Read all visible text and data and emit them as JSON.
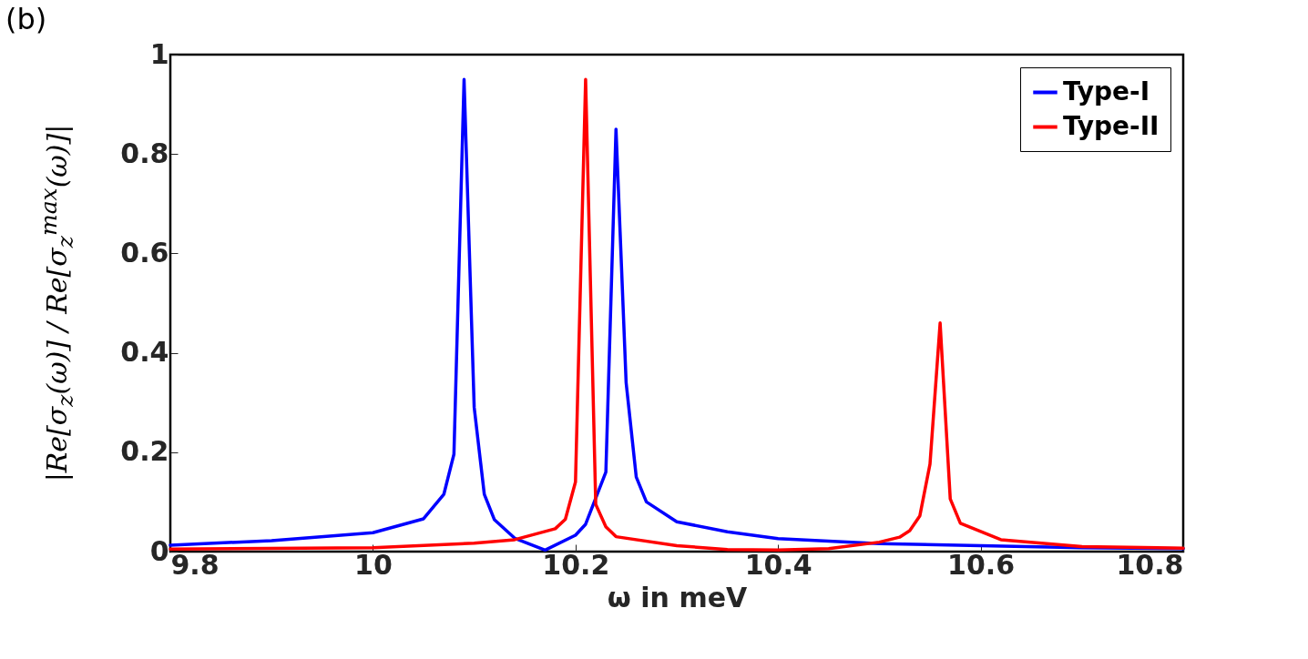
{
  "chart_data": {
    "type": "line",
    "xlabel": "ω in meV",
    "ylabel": "|Re[σ$_{z}$(ω)] / Re[σ$_{z}$$^{max}$(ω)]|",
    "annotations": [
      "(b)"
    ],
    "xlim": [
      9.8,
      10.8
    ],
    "xticks": [
      9.8,
      10,
      10.2,
      10.4,
      10.6,
      10.8
    ],
    "ylim": [
      0,
      1
    ],
    "yticks": [
      0,
      0.2,
      0.4,
      0.6,
      0.8,
      1
    ],
    "grid": false,
    "legend": "top right",
    "marker": "none",
    "line_style": "solid",
    "series": [
      {
        "name": "Type-I",
        "color": "#0000ff",
        "x": [
          9.8,
          9.9,
          10.0,
          10.05,
          10.07,
          10.08,
          10.09,
          10.1,
          10.11,
          10.12,
          10.14,
          10.17,
          10.2,
          10.21,
          10.23,
          10.24,
          10.25,
          10.26,
          10.27,
          10.3,
          10.35,
          10.4,
          10.5,
          10.6,
          10.7,
          10.8
        ],
        "values": [
          0.013,
          0.022,
          0.038,
          0.066,
          0.115,
          0.196,
          0.95,
          0.29,
          0.115,
          0.064,
          0.027,
          0.003,
          0.033,
          0.055,
          0.16,
          0.85,
          0.34,
          0.15,
          0.1,
          0.06,
          0.04,
          0.026,
          0.016,
          0.012,
          0.008,
          0.006
        ]
      },
      {
        "name": "Type-II",
        "color": "#ff0000",
        "x": [
          9.8,
          10.0,
          10.1,
          10.14,
          10.18,
          10.19,
          10.2,
          10.21,
          10.22,
          10.23,
          10.24,
          10.3,
          10.35,
          10.4,
          10.45,
          10.5,
          10.52,
          10.53,
          10.54,
          10.55,
          10.56,
          10.57,
          10.58,
          10.62,
          10.7,
          10.8
        ],
        "values": [
          0.005,
          0.008,
          0.017,
          0.024,
          0.046,
          0.065,
          0.14,
          0.95,
          0.095,
          0.05,
          0.03,
          0.012,
          0.004,
          0.003,
          0.006,
          0.019,
          0.029,
          0.042,
          0.072,
          0.176,
          0.46,
          0.106,
          0.057,
          0.024,
          0.01,
          0.007
        ]
      }
    ]
  }
}
